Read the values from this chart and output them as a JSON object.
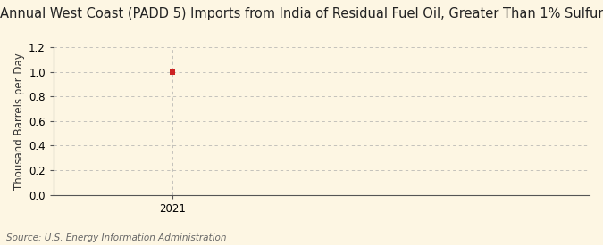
{
  "title": "Annual West Coast (PADD 5) Imports from India of Residual Fuel Oil, Greater Than 1% Sulfur",
  "ylabel": "Thousand Barrels per Day",
  "source_text": "Source: U.S. Energy Information Administration",
  "x_data": [
    2021
  ],
  "y_data": [
    1.0
  ],
  "point_color": "#cc2222",
  "ylim": [
    0.0,
    1.2
  ],
  "yticks": [
    0.0,
    0.2,
    0.4,
    0.6,
    0.8,
    1.0,
    1.2
  ],
  "xlim": [
    2020.6,
    2022.4
  ],
  "xticks": [
    2021
  ],
  "background_color": "#fdf6e3",
  "grid_color": "#aaaaaa",
  "title_fontsize": 10.5,
  "ylabel_fontsize": 8.5,
  "source_fontsize": 7.5,
  "tick_fontsize": 8.5
}
